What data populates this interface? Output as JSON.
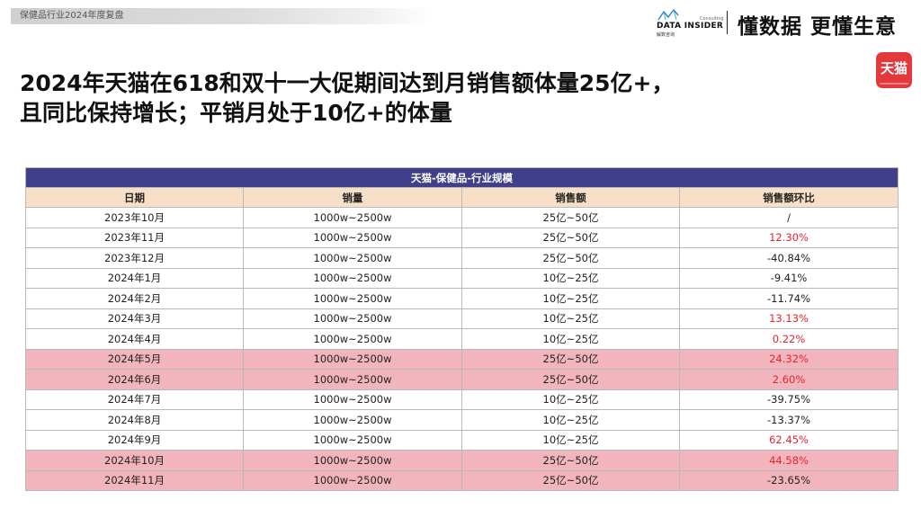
{
  "header": {
    "tag": "保健品行业2024年度复盘",
    "logo_name": "DATA INSIDER",
    "logo_sub": "解数咨询",
    "logo_consult": "Consulting",
    "slogan": "懂数据 更懂生意",
    "platform_badge": "天猫"
  },
  "headline": {
    "line1": "2024年天猫在618和双十一大促期间达到月销售额体量25亿+，",
    "line2": "且同比保持增长；平销月处于10亿+的体量"
  },
  "table": {
    "title": "天猫-保健品-行业规模",
    "columns": [
      "日期",
      "销量",
      "销售额",
      "销售额环比"
    ],
    "rows": [
      {
        "date": "2023年10月",
        "volume": "1000w~2500w",
        "sales": "25亿~50亿",
        "mom": "/",
        "highlight": false,
        "positive": false
      },
      {
        "date": "2023年11月",
        "volume": "1000w~2500w",
        "sales": "25亿~50亿",
        "mom": "12.30%",
        "highlight": false,
        "positive": true
      },
      {
        "date": "2023年12月",
        "volume": "1000w~2500w",
        "sales": "25亿~50亿",
        "mom": "-40.84%",
        "highlight": false,
        "positive": false
      },
      {
        "date": "2024年1月",
        "volume": "1000w~2500w",
        "sales": "10亿~25亿",
        "mom": "-9.41%",
        "highlight": false,
        "positive": false
      },
      {
        "date": "2024年2月",
        "volume": "1000w~2500w",
        "sales": "10亿~25亿",
        "mom": "-11.74%",
        "highlight": false,
        "positive": false
      },
      {
        "date": "2024年3月",
        "volume": "1000w~2500w",
        "sales": "10亿~25亿",
        "mom": "13.13%",
        "highlight": false,
        "positive": true
      },
      {
        "date": "2024年4月",
        "volume": "1000w~2500w",
        "sales": "10亿~25亿",
        "mom": "0.22%",
        "highlight": false,
        "positive": true
      },
      {
        "date": "2024年5月",
        "volume": "1000w~2500w",
        "sales": "25亿~50亿",
        "mom": "24.32%",
        "highlight": true,
        "positive": true
      },
      {
        "date": "2024年6月",
        "volume": "1000w~2500w",
        "sales": "25亿~50亿",
        "mom": "2.60%",
        "highlight": true,
        "positive": true
      },
      {
        "date": "2024年7月",
        "volume": "1000w~2500w",
        "sales": "10亿~25亿",
        "mom": "-39.75%",
        "highlight": false,
        "positive": false
      },
      {
        "date": "2024年8月",
        "volume": "1000w~2500w",
        "sales": "10亿~25亿",
        "mom": "-13.37%",
        "highlight": false,
        "positive": false
      },
      {
        "date": "2024年9月",
        "volume": "1000w~2500w",
        "sales": "10亿~25亿",
        "mom": "62.45%",
        "highlight": false,
        "positive": true
      },
      {
        "date": "2024年10月",
        "volume": "1000w~2500w",
        "sales": "25亿~50亿",
        "mom": "44.58%",
        "highlight": true,
        "positive": true
      },
      {
        "date": "2024年11月",
        "volume": "1000w~2500w",
        "sales": "25亿~50亿",
        "mom": "-23.65%",
        "highlight": true,
        "positive": false
      }
    ]
  },
  "colors": {
    "title_bar": "#3f3f8a",
    "header_row": "#f8dfc7",
    "highlight_row": "#f2b5be",
    "positive_text": "#e4252b",
    "tmall_red": "#e4393c"
  }
}
